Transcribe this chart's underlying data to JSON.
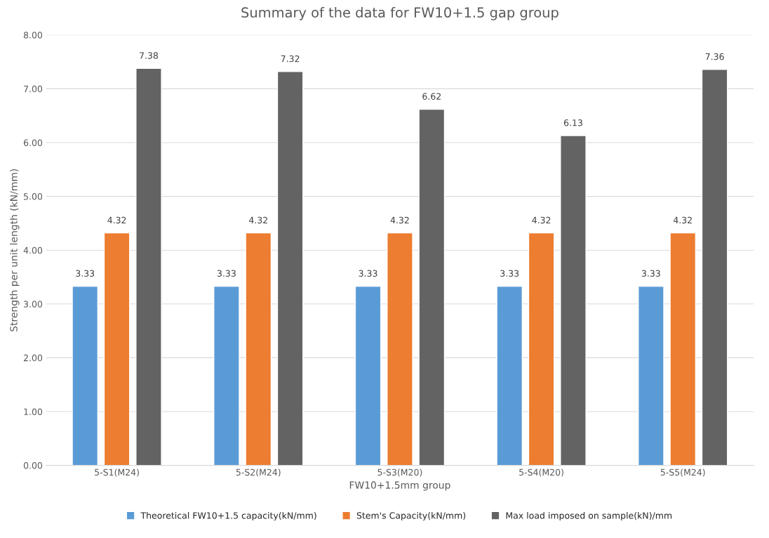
{
  "chart_data": {
    "type": "bar",
    "title": "Summary of the data for FW10+1.5 gap group",
    "xlabel": "FW10+1.5mm group",
    "ylabel": "Strength per unit length (kN/mm)",
    "categories": [
      "5-S1(M24)",
      "5-S2(M24)",
      "5-S3(M20)",
      "5-S4(M20)",
      "5-S5(M24)"
    ],
    "series": [
      {
        "name": "Theoretical FW10+1.5 capacity(kN/mm)",
        "color": "#5b9bd5",
        "values": [
          3.33,
          3.33,
          3.33,
          3.33,
          3.33
        ]
      },
      {
        "name": "Stem's Capacity(kN/mm)",
        "color": "#ed7d31",
        "values": [
          4.32,
          4.32,
          4.32,
          4.32,
          4.32
        ]
      },
      {
        "name": "Max load imposed on sample(kN)/mm",
        "color": "#636363",
        "values": [
          7.38,
          7.32,
          6.62,
          6.13,
          7.36
        ]
      }
    ],
    "ylim": [
      0,
      8
    ],
    "yticks": [
      {
        "value": 0,
        "label": "0.00"
      },
      {
        "value": 1,
        "label": "1.00"
      },
      {
        "value": 2,
        "label": "2.00"
      },
      {
        "value": 3,
        "label": "3.00"
      },
      {
        "value": 4,
        "label": "4.00"
      },
      {
        "value": 5,
        "label": "5.00"
      },
      {
        "value": 6,
        "label": "6.00"
      },
      {
        "value": 7,
        "label": "7.00"
      },
      {
        "value": 8,
        "label": "8.00"
      }
    ],
    "grid": "y",
    "legend": "bottom",
    "data_labels": true
  }
}
